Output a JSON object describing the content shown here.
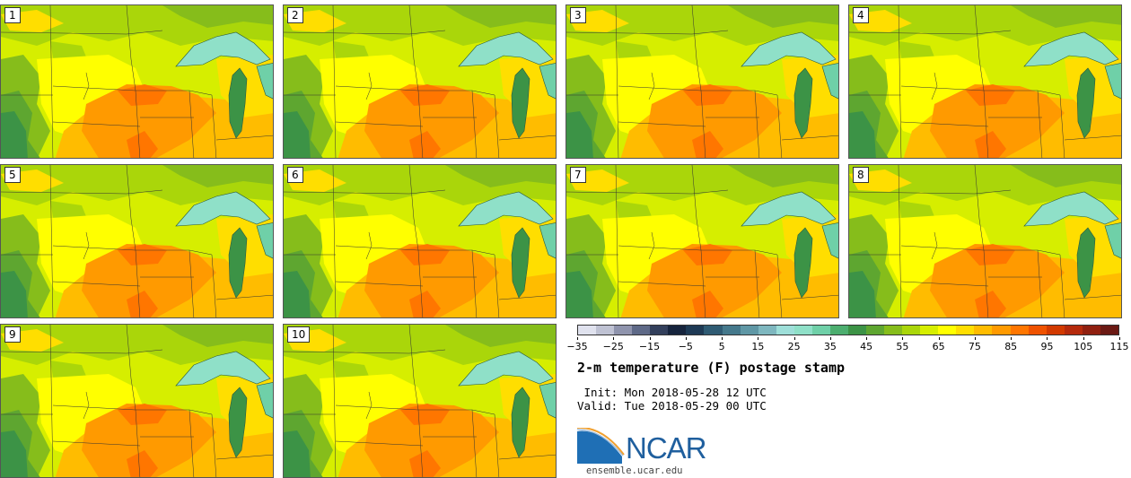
{
  "panels": [
    {
      "label": "1"
    },
    {
      "label": "2"
    },
    {
      "label": "3"
    },
    {
      "label": "4"
    },
    {
      "label": "5"
    },
    {
      "label": "6"
    },
    {
      "label": "7"
    },
    {
      "label": "8"
    },
    {
      "label": "9"
    },
    {
      "label": "10"
    }
  ],
  "colorbar": {
    "colors": [
      "#e0e2ee",
      "#bfc2d3",
      "#8f94ad",
      "#5e6987",
      "#33405c",
      "#16243d",
      "#1e3a55",
      "#2f5b73",
      "#45798c",
      "#5f97a5",
      "#7eb7bf",
      "#9edfd9",
      "#8fe0c8",
      "#6fd0a8",
      "#4cae6f",
      "#3c9346",
      "#5ea630",
      "#86bd1b",
      "#aad60a",
      "#d6ee00",
      "#ffff00",
      "#ffde00",
      "#ffbc00",
      "#ff9a00",
      "#ff7600",
      "#ef5200",
      "#d23a00",
      "#b52a0c",
      "#902010",
      "#6b1a14"
    ],
    "tick_labels": [
      "−35",
      "−25",
      "−15",
      "−5",
      "5",
      "15",
      "25",
      "35",
      "45",
      "55",
      "65",
      "75",
      "85",
      "95",
      "105",
      "115"
    ]
  },
  "title": "2-m temperature (F) postage stamp",
  "init": " Init: Mon 2018-05-28 12 UTC",
  "valid": "Valid: Tue 2018-05-29 00 UTC",
  "logo_text": "NCAR",
  "url": "ensemble.ucar.edu"
}
